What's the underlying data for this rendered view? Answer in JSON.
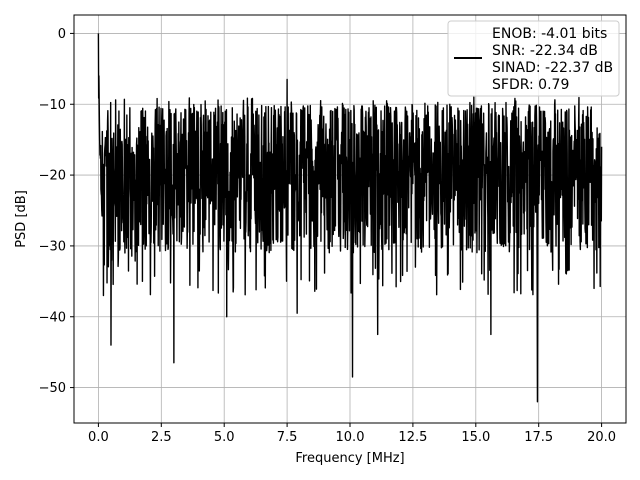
{
  "chart_data": {
    "type": "line",
    "title": "",
    "xlabel": "Frequency [MHz]",
    "ylabel": "PSD [dB]",
    "xlim": [
      -0.97,
      20.97
    ],
    "ylim": [
      -55,
      2.6
    ],
    "xticks": [
      0.0,
      2.5,
      5.0,
      7.5,
      10.0,
      12.5,
      15.0,
      17.5,
      20.0
    ],
    "xtick_labels": [
      "0.0",
      "2.5",
      "5.0",
      "7.5",
      "10.0",
      "12.5",
      "15.0",
      "17.5",
      "20.0"
    ],
    "yticks": [
      0,
      -10,
      -20,
      -30,
      -40,
      -50
    ],
    "ytick_labels": [
      "0",
      "−10",
      "−20",
      "−30",
      "−40",
      "−50"
    ],
    "grid": true,
    "legend_position": "top-right",
    "legend_lines": [
      "ENOB: -4.01 bits",
      "SNR: -22.34 dB",
      "SINAD: -22.37 dB",
      "SFDR: 0.79"
    ],
    "line_color": "#000000",
    "series": [
      {
        "x": [
          0.0,
          0.02,
          0.05,
          0.1,
          0.2,
          0.3,
          0.45,
          0.5,
          0.75,
          1.0,
          1.25,
          1.75,
          2.0,
          2.5,
          3.0,
          3.25,
          4.0,
          5.0,
          5.1,
          6.0,
          6.7,
          7.0,
          7.5,
          7.9,
          9.0,
          10.0,
          10.1,
          11.0,
          11.1,
          12.0,
          12.6,
          13.0,
          14.0,
          15.0,
          15.6,
          16.0,
          17.0,
          17.45,
          17.5,
          18.0,
          19.0,
          19.7,
          20.0
        ],
        "y": [
          0.0,
          -6.0,
          -15.0,
          -22.0,
          -37.0,
          -15.0,
          -30.0,
          -44.0,
          -16.0,
          -25.0,
          -10.5,
          -35.0,
          -19.0,
          -13.0,
          -46.5,
          -19.0,
          -22.0,
          -25.0,
          -40.0,
          -20.0,
          -30.0,
          -22.0,
          -6.5,
          -39.5,
          -21.0,
          -15.0,
          -48.5,
          -20.0,
          -42.5,
          -15.0,
          -33.0,
          -21.0,
          -20.0,
          -26.0,
          -42.5,
          -20.0,
          -21.0,
          -52.0,
          -24.0,
          -22.0,
          -15.0,
          -36.0,
          -16.0
        ]
      }
    ]
  }
}
